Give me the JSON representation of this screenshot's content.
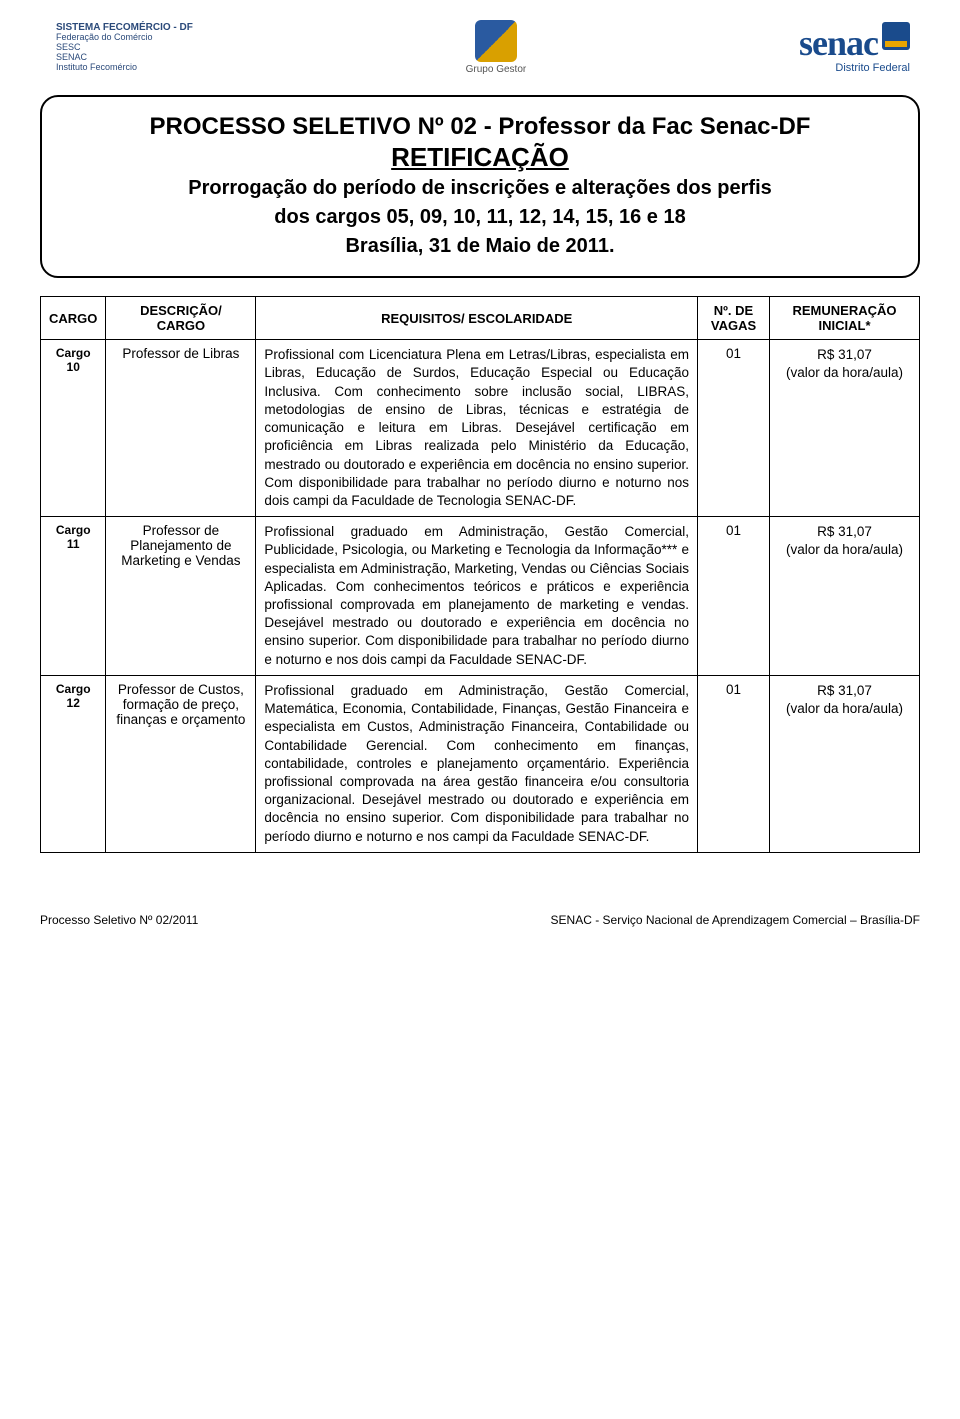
{
  "logos": {
    "left_line1": "SISTEMA FECOMÉRCIO - DF",
    "left_line2": "Federação do Comércio",
    "left_line3": "SESC",
    "left_line4": "SENAC",
    "left_line5": "Instituto Fecomércio",
    "center_caption": "Grupo Gestor",
    "right_brand": "senac",
    "right_sub": "Distrito Federal"
  },
  "title": {
    "line1": "PROCESSO SELETIVO Nº 02 - Professor da Fac Senac-DF",
    "retif": "RETIFICAÇÃO",
    "line2": "Prorrogação do período de inscrições e alterações dos perfis",
    "line3": "dos cargos 05, 09, 10, 11, 12, 14, 15, 16 e 18",
    "line4": "Brasília, 31 de Maio de 2011."
  },
  "table": {
    "headers": {
      "cargo": "CARGO",
      "descricao": "DESCRIÇÃO/ CARGO",
      "requisitos": "REQUISITOS/ ESCOLARIDADE",
      "vagas": "Nº. DE VAGAS",
      "remuneracao": "REMUNERAÇÃO INICIAL*"
    },
    "rows": [
      {
        "cargo": "Cargo 10",
        "descricao": "Professor de Libras",
        "requisitos": "Profissional com Licenciatura Plena em Letras/Libras, especialista em Libras, Educação de Surdos, Educação Especial ou Educação Inclusiva. Com conhecimento sobre inclusão social, LIBRAS, metodologias de ensino de Libras, técnicas e estratégia de comunicação e leitura em Libras. Desejável certificação em proficiência em Libras realizada pelo Ministério da Educação, mestrado ou doutorado e experiência em docência no ensino superior. Com disponibilidade para trabalhar no período diurno e noturno nos dois campi da Faculdade de Tecnologia SENAC-DF.",
        "vagas": "01",
        "rem_valor": "R$ 31,07",
        "rem_nota": "(valor da hora/aula)"
      },
      {
        "cargo": "Cargo 11",
        "descricao": "Professor de Planejamento de Marketing e Vendas",
        "requisitos": "Profissional graduado em Administração, Gestão Comercial, Publicidade, Psicologia, ou Marketing e Tecnologia da Informação*** e especialista em Administração, Marketing, Vendas ou Ciências Sociais Aplicadas. Com conhecimentos teóricos e práticos e experiência profissional comprovada em planejamento de marketing e vendas. Desejável mestrado ou doutorado e experiência em docência no ensino superior. Com disponibilidade para trabalhar no período diurno e noturno e nos dois campi da Faculdade SENAC-DF.",
        "vagas": "01",
        "rem_valor": "R$ 31,07",
        "rem_nota": "(valor da hora/aula)"
      },
      {
        "cargo": "Cargo 12",
        "descricao": "Professor de Custos, formação de preço, finanças e orçamento",
        "requisitos": "Profissional graduado em Administração, Gestão Comercial, Matemática, Economia, Contabilidade, Finanças, Gestão Financeira e especialista em Custos, Administração Financeira, Contabilidade ou Contabilidade Gerencial. Com conhecimento em finanças, contabilidade, controles e planejamento orçamentário. Experiência profissional comprovada na área gestão financeira e/ou consultoria organizacional. Desejável mestrado ou doutorado e experiência em docência no ensino superior. Com disponibilidade para trabalhar no período diurno e noturno e nos campi da Faculdade SENAC-DF.",
        "vagas": "01",
        "rem_valor": "R$ 31,07",
        "rem_nota": "(valor da hora/aula)"
      }
    ]
  },
  "footer": {
    "left": "Processo Seletivo Nº 02/2011",
    "right": "SENAC - Serviço Nacional de Aprendizagem Comercial – Brasília-DF"
  },
  "colors": {
    "border": "#000000",
    "text": "#000000",
    "senac_blue": "#1a4b8c",
    "senac_orange": "#e8a500"
  }
}
